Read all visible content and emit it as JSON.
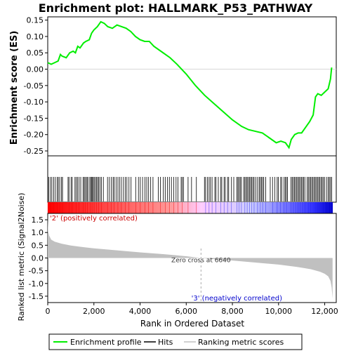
{
  "chart_data": {
    "type": "line",
    "title": "Enrichment plot: HALLMARK_P53_PATHWAY",
    "x_range": [
      0,
      12500
    ],
    "x_ticks": [
      0,
      2000,
      4000,
      6000,
      8000,
      10000,
      12000
    ],
    "x_tick_labels": [
      "0",
      "2,000",
      "4,000",
      "6,000",
      "8,000",
      "10,000",
      "12,000"
    ],
    "xlabel": "Rank in Ordered Dataset",
    "n_genes": 12350,
    "top_panel": {
      "ylabel": "Enrichment score (ES)",
      "ylim": [
        -0.265,
        0.16
      ],
      "y_ticks": [
        0.15,
        0.1,
        0.05,
        0.0,
        -0.05,
        -0.1,
        -0.15,
        -0.2,
        -0.25
      ],
      "y_tick_labels": [
        "0.15",
        "0.10",
        "0.05",
        "0.00",
        "-0.05",
        "-0.10",
        "-0.15",
        "-0.20",
        "-0.25"
      ],
      "zero_line": true,
      "series": [
        {
          "name": "Enrichment profile",
          "color": "#00ee00",
          "x": [
            0,
            150,
            300,
            450,
            550,
            620,
            800,
            950,
            1100,
            1200,
            1300,
            1400,
            1550,
            1650,
            1800,
            1900,
            2000,
            2150,
            2250,
            2300,
            2450,
            2600,
            2800,
            3000,
            3200,
            3400,
            3600,
            3800,
            4000,
            4200,
            4400,
            4600,
            5000,
            5300,
            5600,
            6000,
            6400,
            6800,
            7200,
            7600,
            8000,
            8400,
            8700,
            9000,
            9300,
            9600,
            9900,
            10100,
            10300,
            10450,
            10550,
            10700,
            10850,
            11000,
            11200,
            11350,
            11500,
            11600,
            11700,
            11850,
            12000,
            12150,
            12250,
            12300
          ],
          "y": [
            0.02,
            0.015,
            0.02,
            0.025,
            0.045,
            0.04,
            0.035,
            0.05,
            0.055,
            0.05,
            0.07,
            0.065,
            0.08,
            0.085,
            0.09,
            0.11,
            0.12,
            0.13,
            0.14,
            0.145,
            0.14,
            0.13,
            0.125,
            0.135,
            0.13,
            0.125,
            0.115,
            0.1,
            0.09,
            0.085,
            0.085,
            0.07,
            0.05,
            0.035,
            0.015,
            -0.015,
            -0.05,
            -0.08,
            -0.105,
            -0.13,
            -0.155,
            -0.175,
            -0.185,
            -0.19,
            -0.195,
            -0.21,
            -0.225,
            -0.22,
            -0.225,
            -0.24,
            -0.215,
            -0.2,
            -0.195,
            -0.195,
            -0.175,
            -0.16,
            -0.14,
            -0.085,
            -0.075,
            -0.08,
            -0.07,
            -0.06,
            -0.03,
            0.005
          ]
        }
      ]
    },
    "hits": {
      "name": "Hits",
      "positions": [
        5,
        40,
        120,
        180,
        260,
        330,
        410,
        460,
        520,
        600,
        640,
        880,
        920,
        1010,
        1060,
        1180,
        1230,
        1290,
        1360,
        1430,
        1530,
        1580,
        1620,
        1680,
        1720,
        1790,
        1850,
        1890,
        1920,
        1960,
        2010,
        2060,
        2110,
        2160,
        2210,
        2270,
        2330,
        2410,
        2590,
        2670,
        2750,
        2830,
        2880,
        2960,
        3040,
        3110,
        3190,
        3280,
        3360,
        3430,
        3520,
        3610,
        3810,
        3930,
        4010,
        4110,
        4210,
        4290,
        4370,
        4460,
        4560,
        4790,
        4880,
        5010,
        5090,
        5190,
        5270,
        5360,
        5460,
        5560,
        5640,
        5780,
        5830,
        5880,
        6080,
        6230,
        6440,
        6790,
        6840,
        6920,
        6990,
        7050,
        7120,
        7240,
        7290,
        7390,
        7490,
        7540,
        7640,
        7690,
        7790,
        7840,
        7960,
        8060,
        8190,
        8240,
        8290,
        8340,
        8390,
        8490,
        8540,
        8590,
        8640,
        8690,
        8740,
        8790,
        8840,
        8890,
        8940,
        9010,
        9090,
        9160,
        9210,
        9260,
        9310,
        9360,
        9440,
        9640,
        9740,
        9840,
        9940,
        9990,
        10090,
        10140,
        10240,
        10290,
        10340,
        10390,
        10540,
        10590,
        10640,
        10690,
        10740,
        10790,
        10840,
        10890,
        10940,
        10990,
        11040,
        11090,
        11140,
        11240,
        11290,
        11340,
        11390,
        11440,
        11490,
        11540,
        11590,
        11640,
        11690,
        11740,
        11790,
        11840,
        11890,
        11940,
        12000,
        12080,
        12150,
        12200,
        12250,
        12300
      ]
    },
    "ranking_bar": {
      "colors": [
        "#ff0000",
        "#ff9999",
        "#ffccff",
        "#ccccff",
        "#3333ff",
        "#0000cc"
      ]
    },
    "bottom_panel": {
      "ylabel": "Ranked list metric (Signal2Noise)",
      "ylim": [
        -1.75,
        1.75
      ],
      "y_ticks": [
        1.5,
        1.0,
        0.5,
        0.0,
        -0.5,
        -1.0,
        -1.5
      ],
      "y_tick_labels": [
        "1.5",
        "1.0",
        "0.5",
        "0.0",
        "-0.5",
        "-1.0",
        "-1.5"
      ],
      "series": [
        {
          "name": "Ranking metric scores",
          "color": "#c0c0c0",
          "x": [
            0,
            20,
            60,
            150,
            300,
            600,
            1000,
            1500,
            2000,
            3000,
            4000,
            5000,
            6000,
            6640,
            7000,
            8000,
            9000,
            10000,
            10800,
            11400,
            11800,
            12000,
            12150,
            12250,
            12300,
            12340
          ],
          "y": [
            1.6,
            1.05,
            0.88,
            0.72,
            0.64,
            0.56,
            0.49,
            0.43,
            0.38,
            0.3,
            0.22,
            0.15,
            0.07,
            0.0,
            -0.03,
            -0.1,
            -0.18,
            -0.26,
            -0.35,
            -0.44,
            -0.54,
            -0.62,
            -0.72,
            -0.9,
            -1.15,
            -1.6
          ]
        }
      ],
      "zero_cross_label": "Zero cross at 6640",
      "zero_cross_x": 6640,
      "pos_label": "'2' (positively correlated)",
      "neg_label": "'3' (negatively correlated)",
      "pos_color": "#cc0000",
      "neg_color": "#0000cc"
    },
    "legend": {
      "placement": "bottom",
      "entries": [
        {
          "label": "Enrichment profile",
          "color": "#00ee00"
        },
        {
          "label": "Hits",
          "color": "#000000"
        },
        {
          "label": "Ranking metric scores",
          "color": "#c0c0c0"
        }
      ]
    }
  }
}
